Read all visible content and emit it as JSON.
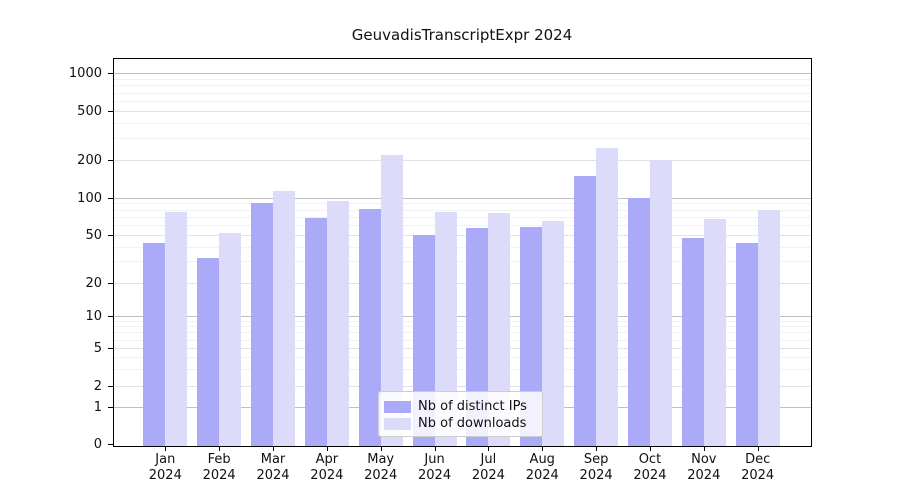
{
  "chart_data": {
    "type": "bar",
    "title": "GeuvadisTranscriptExpr 2024",
    "categories": [
      "Jan",
      "Feb",
      "Mar",
      "Apr",
      "May",
      "Jun",
      "Jul",
      "Aug",
      "Sep",
      "Oct",
      "Nov",
      "Dec"
    ],
    "category_year": "2024",
    "series": [
      {
        "name": "Nb of distinct IPs",
        "color": "#aaaaf8",
        "values": [
          43,
          32,
          91,
          68,
          81,
          50,
          57,
          58,
          150,
          100,
          47,
          43
        ]
      },
      {
        "name": "Nb of downloads",
        "color": "#dcdcfa",
        "values": [
          77,
          52,
          112,
          94,
          220,
          77,
          75,
          65,
          248,
          200,
          67,
          80
        ]
      }
    ],
    "yscale": "log",
    "yticks": [
      0,
      1,
      2,
      5,
      10,
      20,
      50,
      100,
      200,
      500,
      1000
    ],
    "ytick_labels": [
      "0",
      "1",
      "2",
      "5",
      "10",
      "20",
      "50",
      "100",
      "200",
      "500",
      "1000"
    ],
    "ylim": [
      0,
      1400
    ],
    "grid": true,
    "legend_position": "lower center"
  }
}
